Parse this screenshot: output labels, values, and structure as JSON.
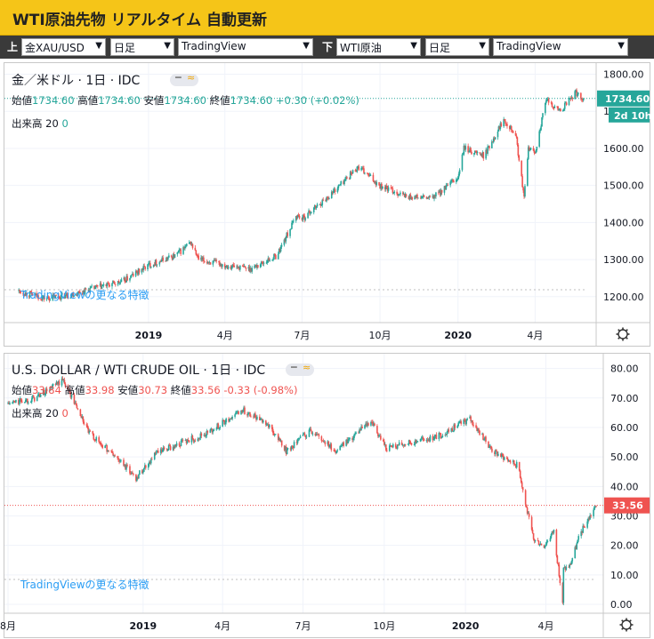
{
  "header": {
    "title": "WTI原油先物 リアルタイム 自動更新"
  },
  "toolbar": {
    "upper_label": "上",
    "upper_symbol": "金XAU/USD",
    "upper_interval": "日足",
    "upper_source": "TradingView",
    "lower_label": "下",
    "lower_symbol": "WTI原油",
    "lower_interval": "日足",
    "lower_source": "TradingView"
  },
  "top_panel": {
    "symbol": "金／米ドル · 1日 · IDC",
    "ohlc": {
      "open_label": "始値",
      "open": "1734.60",
      "high_label": "高値",
      "high": "1734.60",
      "low_label": "安値",
      "low": "1734.60",
      "close_label": "終値",
      "close": "1734.60",
      "change": "+0.30 (+0.02%)"
    },
    "volume_label": "出来高 20",
    "volume_value": "0",
    "watermark": "TradingViewの更なる特徴",
    "price_tag": "1734.60",
    "countdown_tag": "2d 10h"
  },
  "bottom_panel": {
    "symbol": "U.S. DOLLAR / WTI CRUDE OIL · 1日 · IDC",
    "ohlc": {
      "open_label": "始値",
      "open": "33.84",
      "high_label": "高値",
      "high": "33.98",
      "low_label": "安値",
      "low": "30.73",
      "close_label": "終値",
      "close": "33.56",
      "change": "-0.33 (-0.98%)"
    },
    "volume_label": "出来高 20",
    "volume_value": "0",
    "watermark": "TradingViewの更なる特徴",
    "price_tag": "33.56"
  },
  "colors": {
    "up": "#26a69a",
    "down": "#ef5350",
    "accent": "#f5c518",
    "gold_up": "#2fa37f"
  },
  "chart_data": [
    {
      "type": "line",
      "title": "金／米ドル · 1日 · IDC",
      "x_tick_labels": [
        "2019",
        "4月",
        "7月",
        "10月",
        "2020",
        "4月"
      ],
      "y_tick_labels": [
        "1200.00",
        "1300.00",
        "1400.00",
        "1500.00",
        "1600.00",
        "1700.00",
        "1800.00"
      ],
      "ylim": [
        1130,
        1830
      ],
      "grid": true,
      "series": [
        {
          "dates": [
            "2018-08-01",
            "2018-09-01",
            "2018-10-01",
            "2018-11-01",
            "2018-12-01",
            "2019-01-01",
            "2019-02-01",
            "2019-02-20",
            "2019-03-01",
            "2019-04-01",
            "2019-05-01",
            "2019-06-01",
            "2019-06-25",
            "2019-07-01",
            "2019-08-01",
            "2019-09-05",
            "2019-10-01",
            "2019-11-01",
            "2019-12-01",
            "2020-01-01",
            "2020-01-08",
            "2020-02-01",
            "2020-02-24",
            "2020-03-09",
            "2020-03-19",
            "2020-03-24",
            "2020-04-01",
            "2020-04-14",
            "2020-05-01",
            "2020-05-18",
            "2020-05-28"
          ],
          "values": [
            1215,
            1195,
            1205,
            1225,
            1240,
            1285,
            1310,
            1345,
            1300,
            1285,
            1275,
            1310,
            1420,
            1410,
            1470,
            1550,
            1500,
            1470,
            1465,
            1520,
            1600,
            1580,
            1680,
            1640,
            1465,
            1600,
            1590,
            1730,
            1700,
            1750,
            1734.6
          ]
        }
      ]
    },
    {
      "type": "line",
      "title": "U.S. DOLLAR / WTI CRUDE OIL · 1日 · IDC",
      "x_tick_labels": [
        "8月",
        "2019",
        "4月",
        "7月",
        "10月",
        "2020",
        "4月"
      ],
      "y_tick_labels": [
        "0.00",
        "10.00",
        "20.00",
        "30.00",
        "40.00",
        "50.00",
        "60.00",
        "70.00",
        "80.00"
      ],
      "ylim": [
        -3,
        85
      ],
      "grid": true,
      "series": [
        {
          "dates": [
            "2018-08-01",
            "2018-09-01",
            "2018-10-03",
            "2018-11-01",
            "2018-12-01",
            "2018-12-24",
            "2019-01-15",
            "2019-02-15",
            "2019-03-15",
            "2019-04-23",
            "2019-05-20",
            "2019-06-12",
            "2019-07-10",
            "2019-08-07",
            "2019-09-16",
            "2019-10-03",
            "2019-10-31",
            "2019-12-01",
            "2020-01-06",
            "2020-02-01",
            "2020-03-01",
            "2020-03-09",
            "2020-03-18",
            "2020-03-30",
            "2020-04-10",
            "2020-04-20",
            "2020-04-21",
            "2020-04-28",
            "2020-05-10",
            "2020-05-28"
          ],
          "values": [
            68,
            70,
            76,
            58,
            50,
            43,
            51,
            55,
            58,
            66,
            62,
            52,
            59,
            52,
            62,
            53,
            55,
            57,
            63,
            52,
            47,
            34,
            22,
            20,
            25,
            0,
            12,
            13,
            24,
            33.56
          ]
        }
      ]
    }
  ]
}
